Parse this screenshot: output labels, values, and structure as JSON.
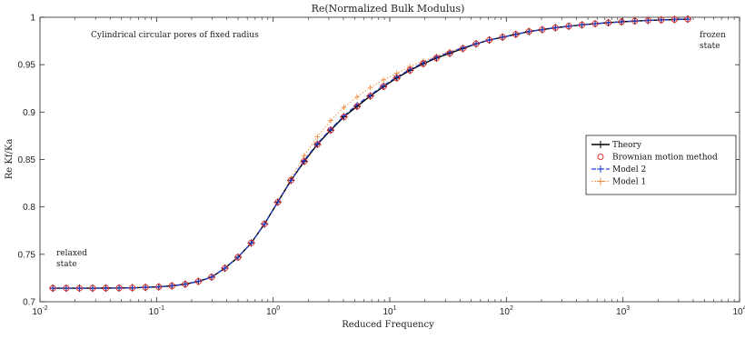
{
  "chart_data": {
    "type": "line",
    "title": "Re(Normalized Bulk Modulus)",
    "xlabel": "Reduced Frequency",
    "ylabel": "Re Kf/Ka",
    "xscale": "log",
    "xlim": [
      0.01,
      10000
    ],
    "ylim": [
      0.7,
      1.0
    ],
    "xticks": [
      {
        "base": "10",
        "exp": "-2",
        "value": 0.01
      },
      {
        "base": "10",
        "exp": "-1",
        "value": 0.1
      },
      {
        "base": "10",
        "exp": "0",
        "value": 1
      },
      {
        "base": "10",
        "exp": "1",
        "value": 10
      },
      {
        "base": "10",
        "exp": "2",
        "value": 100
      },
      {
        "base": "10",
        "exp": "3",
        "value": 1000
      },
      {
        "base": "10",
        "exp": "4",
        "value": 10000
      }
    ],
    "yticks": [
      "0.7",
      "0.75",
      "0.8",
      "0.85",
      "0.9",
      "0.95",
      "1"
    ],
    "grid": false,
    "legend_position": "right",
    "annotations": {
      "top_left": "Cylindrical circular pores of fixed radius",
      "left_1": "relaxed",
      "left_2": "state",
      "right_1": "frozen",
      "right_2": "state"
    },
    "x": [
      0.0129,
      0.0168,
      0.0218,
      0.0283,
      0.0367,
      0.0477,
      0.0619,
      0.0804,
      0.1044,
      0.1355,
      0.1759,
      0.2284,
      0.2966,
      0.3851,
      0.5,
      0.6492,
      0.843,
      1.0946,
      1.4212,
      1.8454,
      2.3962,
      3.1113,
      4.0399,
      5.2457,
      6.8113,
      8.8443,
      11.484,
      14.912,
      19.362,
      25.141,
      32.645,
      42.388,
      55.04,
      71.467,
      92.798,
      120.49,
      156.46,
      203.15,
      263.79,
      342.52,
      444.75,
      577.49,
      749.85,
      973.65,
      1264.2,
      1641.6,
      2131.5,
      2767.7,
      3593.7
    ],
    "series": [
      {
        "name": "Theory",
        "color": "#000000",
        "marker": "plus",
        "y": [
          0.7143,
          0.7143,
          0.7143,
          0.7143,
          0.7144,
          0.7145,
          0.7147,
          0.7151,
          0.7157,
          0.7168,
          0.7185,
          0.7215,
          0.726,
          0.7354,
          0.747,
          0.762,
          0.782,
          0.805,
          0.828,
          0.848,
          0.866,
          0.881,
          0.895,
          0.906,
          0.917,
          0.927,
          0.936,
          0.944,
          0.951,
          0.957,
          0.962,
          0.967,
          0.972,
          0.976,
          0.979,
          0.982,
          0.985,
          0.987,
          0.989,
          0.9905,
          0.992,
          0.9932,
          0.9943,
          0.9952,
          0.996,
          0.9967,
          0.9972,
          0.9976,
          0.998
        ]
      },
      {
        "name": "Brownian motion method",
        "color": "#e52d2d",
        "marker": "circle",
        "y": [
          0.7143,
          0.7143,
          0.7143,
          0.7143,
          0.7144,
          0.7145,
          0.7147,
          0.7151,
          0.7157,
          0.7168,
          0.7185,
          0.7215,
          0.726,
          0.7354,
          0.747,
          0.762,
          0.782,
          0.805,
          0.828,
          0.848,
          0.866,
          0.881,
          0.895,
          0.906,
          0.917,
          0.927,
          0.936,
          0.944,
          0.951,
          0.957,
          0.962,
          0.967,
          0.972,
          0.976,
          0.979,
          0.982,
          0.985,
          0.987,
          0.989,
          0.9905,
          0.992,
          0.9932,
          0.9943,
          0.9952,
          0.996,
          0.9967,
          0.9972,
          0.9976,
          0.998
        ]
      },
      {
        "name": "Model 2",
        "color": "#1f3fd6",
        "marker": "plus",
        "y": [
          0.7143,
          0.7143,
          0.7143,
          0.7143,
          0.7144,
          0.7145,
          0.7147,
          0.7151,
          0.7157,
          0.7168,
          0.7185,
          0.7215,
          0.726,
          0.7354,
          0.747,
          0.762,
          0.782,
          0.805,
          0.828,
          0.849,
          0.867,
          0.882,
          0.896,
          0.908,
          0.918,
          0.928,
          0.937,
          0.945,
          0.952,
          0.958,
          0.963,
          0.968,
          0.972,
          0.976,
          0.979,
          0.982,
          0.985,
          0.987,
          0.989,
          0.9905,
          0.992,
          0.9932,
          0.9943,
          0.9952,
          0.996,
          0.9967,
          0.9972,
          0.9976,
          0.998
        ]
      },
      {
        "name": "Model 1",
        "color": "#f08a3c",
        "marker": "plus",
        "y": [
          0.7143,
          0.7143,
          0.7143,
          0.7143,
          0.7144,
          0.7145,
          0.7147,
          0.7151,
          0.7157,
          0.7168,
          0.7185,
          0.7215,
          0.726,
          0.7354,
          0.747,
          0.762,
          0.782,
          0.806,
          0.83,
          0.854,
          0.874,
          0.891,
          0.905,
          0.916,
          0.926,
          0.934,
          0.941,
          0.948,
          0.954,
          0.959,
          0.964,
          0.968,
          0.972,
          0.976,
          0.979,
          0.982,
          0.985,
          0.987,
          0.989,
          0.9905,
          0.992,
          0.9932,
          0.9943,
          0.9952,
          0.996,
          0.9967,
          0.9972,
          0.9976,
          0.998
        ]
      }
    ]
  }
}
